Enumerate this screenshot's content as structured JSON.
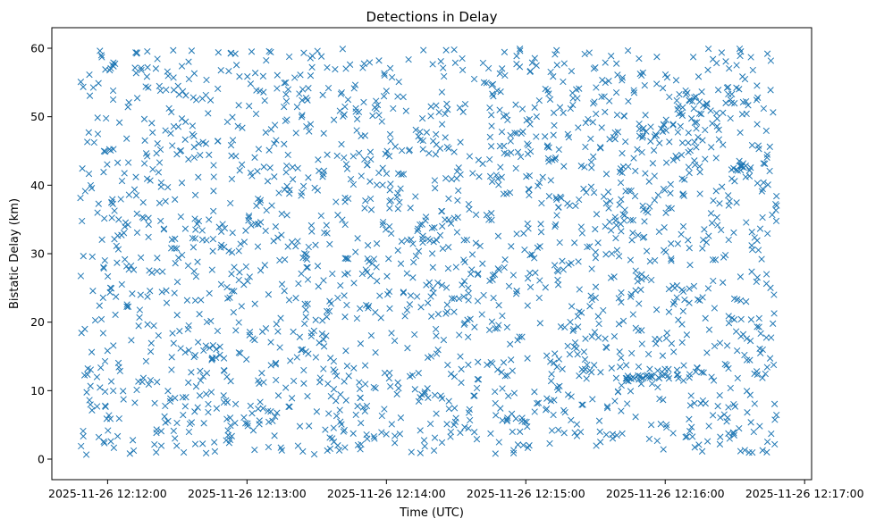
{
  "chart_data": {
    "type": "scatter",
    "title": "Detections in Delay",
    "xlabel": "Time (UTC)",
    "ylabel": "Bistatic Delay (km)",
    "marker": "x",
    "color": "#1f77b4",
    "grid": false,
    "x_start": "2025-11-26 12:11:48",
    "x_end": "2025-11-26 12:16:48",
    "xlim": [
      "2025-11-26 12:11:36",
      "2025-11-26 12:17:03"
    ],
    "ylim": [
      -3,
      63
    ],
    "x_ticks": [
      "2025-11-26 12:12:00",
      "2025-11-26 12:13:00",
      "2025-11-26 12:14:00",
      "2025-11-26 12:15:00",
      "2025-11-26 12:16:00",
      "2025-11-26 12:17:00"
    ],
    "y_ticks": [
      "0",
      "10",
      "20",
      "30",
      "40",
      "50",
      "60"
    ],
    "y_range": [
      0.5,
      60
    ],
    "point_count": 2100,
    "clusters": [
      {
        "x": "2025-11-26 12:15:52",
        "y": 12.0,
        "x_spread_s": 10,
        "y_spread": 0.4,
        "n": 25
      },
      {
        "x": "2025-11-26 12:16:10",
        "y": 50.5,
        "x_spread_s": 8,
        "y_spread": 2.5,
        "n": 20
      },
      {
        "x": "2025-11-26 12:15:58",
        "y": 48.0,
        "x_spread_s": 10,
        "y_spread": 1.0,
        "n": 15
      },
      {
        "x": "2025-11-26 12:16:33",
        "y": 42.5,
        "x_spread_s": 5,
        "y_spread": 0.4,
        "n": 12
      }
    ]
  }
}
